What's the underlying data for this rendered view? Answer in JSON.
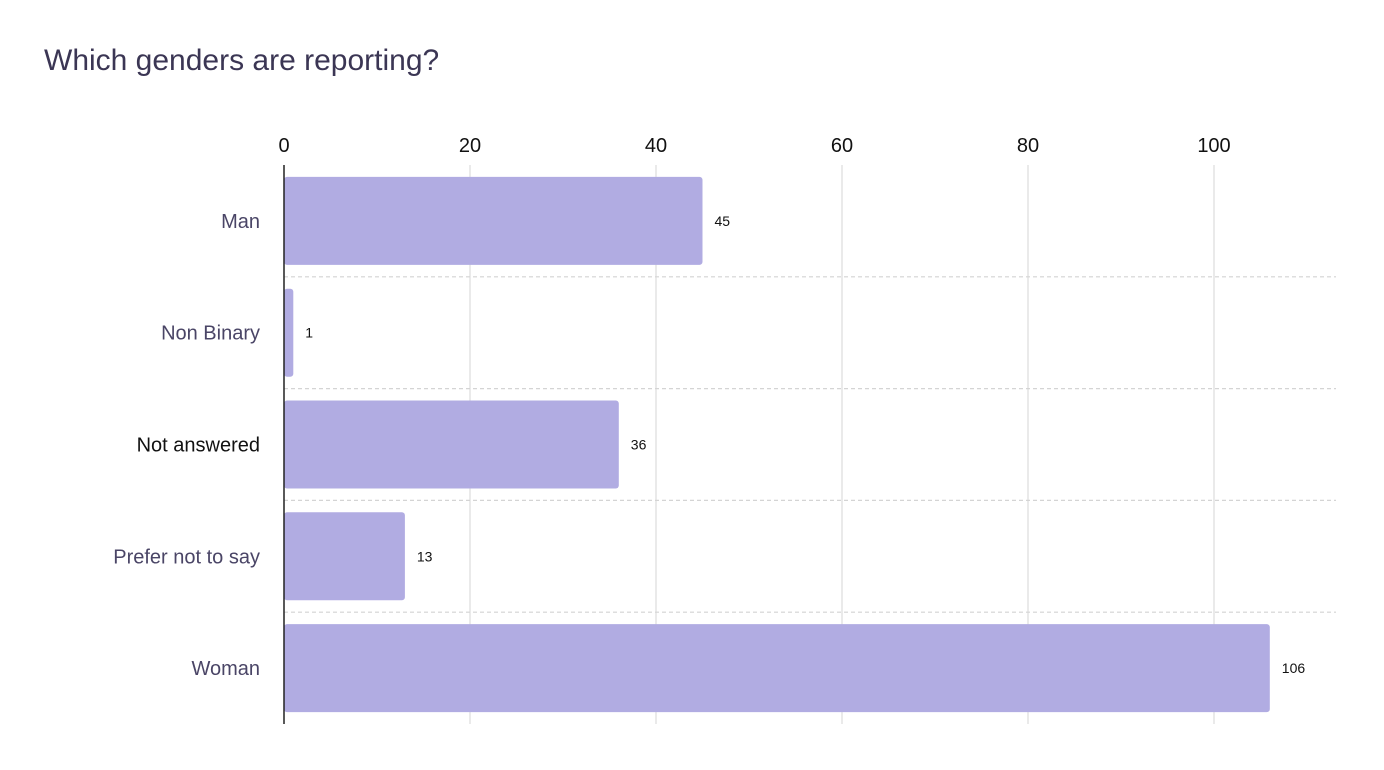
{
  "chart_data": {
    "type": "bar",
    "orientation": "horizontal",
    "title": "Which genders are reporting?",
    "xlabel": "",
    "ylabel": "",
    "categories": [
      "Man",
      "Non Binary",
      "Not answered",
      "Prefer not to say",
      "Woman"
    ],
    "values": [
      45,
      1,
      36,
      13,
      106
    ],
    "xlim": [
      0,
      113
    ],
    "x_ticks": [
      0,
      20,
      40,
      60,
      80,
      100
    ],
    "x_axis_position": "top",
    "grid": true,
    "legend": "none",
    "data_labels": true
  },
  "colors": {
    "bar": "#b1ace2",
    "title": "#3b3654",
    "category_label": "#4a4566",
    "category_label_highlight": "#111111",
    "grid": "#dddddd",
    "separator": "#d4d4d4",
    "axis": "#222222"
  },
  "highlighted_category": "Not answered"
}
